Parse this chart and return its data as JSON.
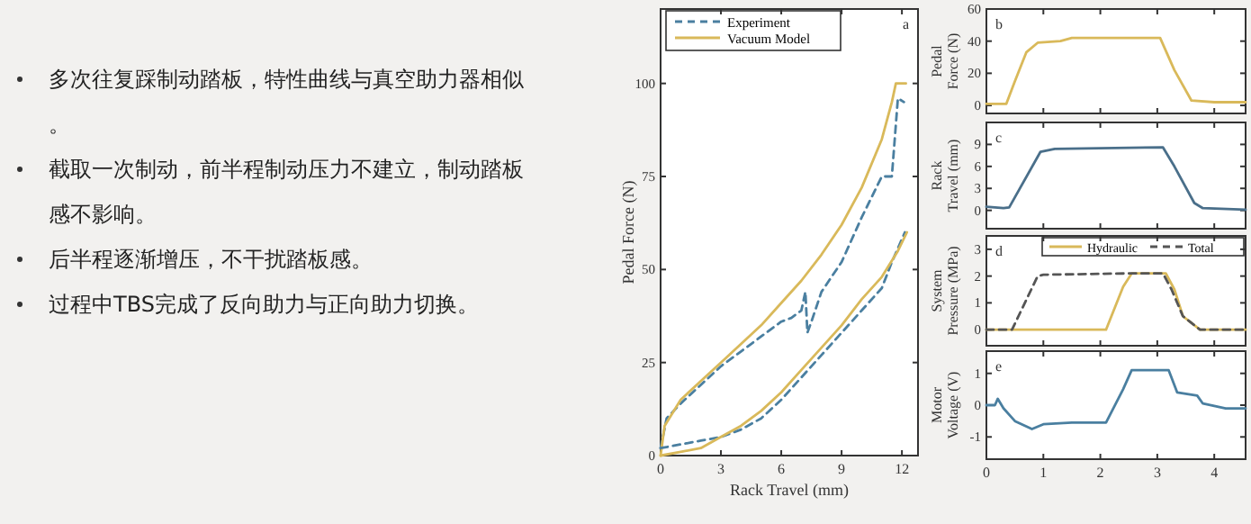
{
  "chart_data": [
    {
      "type": "other",
      "annotations": [
        "多次往复踩制动踏板，特性曲线与真空助力器相似。",
        "截取一次制动，前半程制动压力不建立，制动踏板感不影响。",
        "后半程逐渐增压，不干扰踏板感。",
        "过程中TBS完成了反向助力与正向助力切换。"
      ]
    },
    {
      "type": "line",
      "xlabel": "Rack Travel (mm)",
      "ylabel": "Pedal Force (N)",
      "annotations": [
        "a"
      ],
      "xlim": [
        0,
        12.8
      ],
      "ylim": [
        0,
        120
      ],
      "xticks": [
        0,
        3,
        6,
        9,
        12
      ],
      "yticks": [
        0,
        25,
        50,
        75,
        100
      ],
      "legend": "top left",
      "series": [
        {
          "name": "Experiment",
          "color": "#4a7fa0",
          "line_style": "dashed",
          "x": [
            0,
            0.3,
            1,
            2,
            3,
            4,
            5,
            6,
            6.5,
            7,
            7.2,
            7.3,
            7.5,
            8,
            9,
            10,
            11,
            11.5,
            11.8,
            12.1
          ],
          "values": [
            2,
            10,
            14,
            19,
            24,
            28,
            32,
            36,
            37,
            39,
            44,
            33,
            36,
            44,
            52,
            64,
            75,
            75,
            96,
            95
          ]
        },
        {
          "name": "Vacuum Model",
          "color": "#d9b95a",
          "line_style": "solid",
          "x": [
            0,
            0.2,
            1,
            2,
            3,
            4,
            5,
            6,
            7,
            8,
            9,
            10,
            11,
            11.5,
            11.7,
            12.2
          ],
          "values": [
            0,
            8,
            15,
            20,
            25,
            30,
            35,
            41,
            47,
            54,
            62,
            72,
            85,
            95,
            100,
            100
          ]
        },
        {
          "color": "#4a7fa0",
          "line_style": "dashed",
          "x": [
            0,
            1,
            2,
            3,
            4,
            5,
            6,
            7,
            8,
            9,
            10,
            11,
            11.5,
            12.15
          ],
          "values": [
            2,
            3,
            4,
            5,
            7,
            10,
            15,
            21,
            27,
            33,
            39,
            45,
            52,
            60
          ]
        },
        {
          "color": "#d9b95a",
          "line_style": "solid",
          "x": [
            0,
            1,
            2,
            3,
            4,
            5,
            6,
            7,
            8,
            9,
            10,
            11,
            11.8,
            12.25
          ],
          "values": [
            0,
            1,
            2,
            5,
            8,
            12,
            17,
            23,
            29,
            35,
            42,
            48,
            55,
            60
          ]
        }
      ]
    },
    {
      "type": "line",
      "ylabel": "Pedal Force (N)",
      "annotations": [
        "b"
      ],
      "xlim": [
        0,
        4.55
      ],
      "ylim": [
        -5,
        60
      ],
      "xticks": [
        0,
        1,
        2,
        3,
        4
      ],
      "yticks": [
        0,
        20,
        40,
        60
      ],
      "tick_labels": "y",
      "series": [
        {
          "color": "#d9b95a",
          "x": [
            0,
            0.35,
            0.5,
            0.7,
            0.9,
            1.3,
            1.5,
            3.05,
            3.3,
            3.6,
            4,
            4.55
          ],
          "values": [
            1,
            1,
            15,
            33,
            39,
            40,
            42,
            42,
            22,
            3,
            2,
            2
          ]
        }
      ]
    },
    {
      "type": "line",
      "ylabel": "Rack Travel (mm)",
      "annotations": [
        "c"
      ],
      "xlim": [
        0,
        4.55
      ],
      "ylim": [
        -2.5,
        12
      ],
      "xticks": [
        0,
        1,
        2,
        3,
        4
      ],
      "yticks": [
        0,
        3,
        6,
        9
      ],
      "tick_labels": "y",
      "series": [
        {
          "color": "#4a6f8a",
          "x": [
            0,
            0.3,
            0.4,
            0.95,
            1.2,
            3.1,
            3.3,
            3.65,
            3.8,
            4.55
          ],
          "values": [
            0.5,
            0.3,
            0.4,
            8,
            8.4,
            8.6,
            6,
            1,
            0.3,
            0.1
          ]
        }
      ]
    },
    {
      "type": "line",
      "ylabel": "System Pressure (MPa)",
      "annotations": [
        "d"
      ],
      "xlim": [
        0,
        4.55
      ],
      "ylim": [
        -0.6,
        3.5
      ],
      "xticks": [
        0,
        1,
        2,
        3,
        4
      ],
      "yticks": [
        0,
        1,
        2,
        3
      ],
      "tick_labels": "y",
      "legend": "top right",
      "series": [
        {
          "name": "Hydraulic",
          "color": "#d9b95a",
          "line_style": "solid",
          "x": [
            0,
            2.1,
            2.4,
            2.55,
            3.15,
            3.3,
            3.45,
            3.75,
            4.55
          ],
          "values": [
            0,
            0,
            1.6,
            2.1,
            2.1,
            1.5,
            0.5,
            0,
            0
          ]
        },
        {
          "name": "Total",
          "color": "#555555",
          "line_style": "dashed",
          "x": [
            0,
            0.45,
            0.9,
            1,
            2.5,
            3.1,
            3.25,
            3.45,
            3.75,
            4.55
          ],
          "values": [
            0,
            0,
            2,
            2.05,
            2.1,
            2.1,
            1.5,
            0.5,
            0,
            0
          ]
        }
      ]
    },
    {
      "type": "line",
      "ylabel": "Motor Voltage (V)",
      "annotations": [
        "e"
      ],
      "xlim": [
        0,
        4.55
      ],
      "ylim": [
        -1.7,
        1.7
      ],
      "xticks": [
        0,
        1,
        2,
        3,
        4
      ],
      "yticks": [
        -1,
        0,
        1
      ],
      "series": [
        {
          "color": "#4a7fa0",
          "x": [
            0,
            0.15,
            0.2,
            0.3,
            0.5,
            0.8,
            1,
            1.5,
            2.1,
            2.4,
            2.55,
            3.2,
            3.35,
            3.7,
            3.8,
            4.2,
            4.55
          ],
          "values": [
            0,
            0,
            0.2,
            -0.1,
            -0.5,
            -0.75,
            -0.6,
            -0.55,
            -0.55,
            0.5,
            1.1,
            1.1,
            0.4,
            0.3,
            0.05,
            -0.1,
            -0.1
          ]
        }
      ]
    }
  ]
}
